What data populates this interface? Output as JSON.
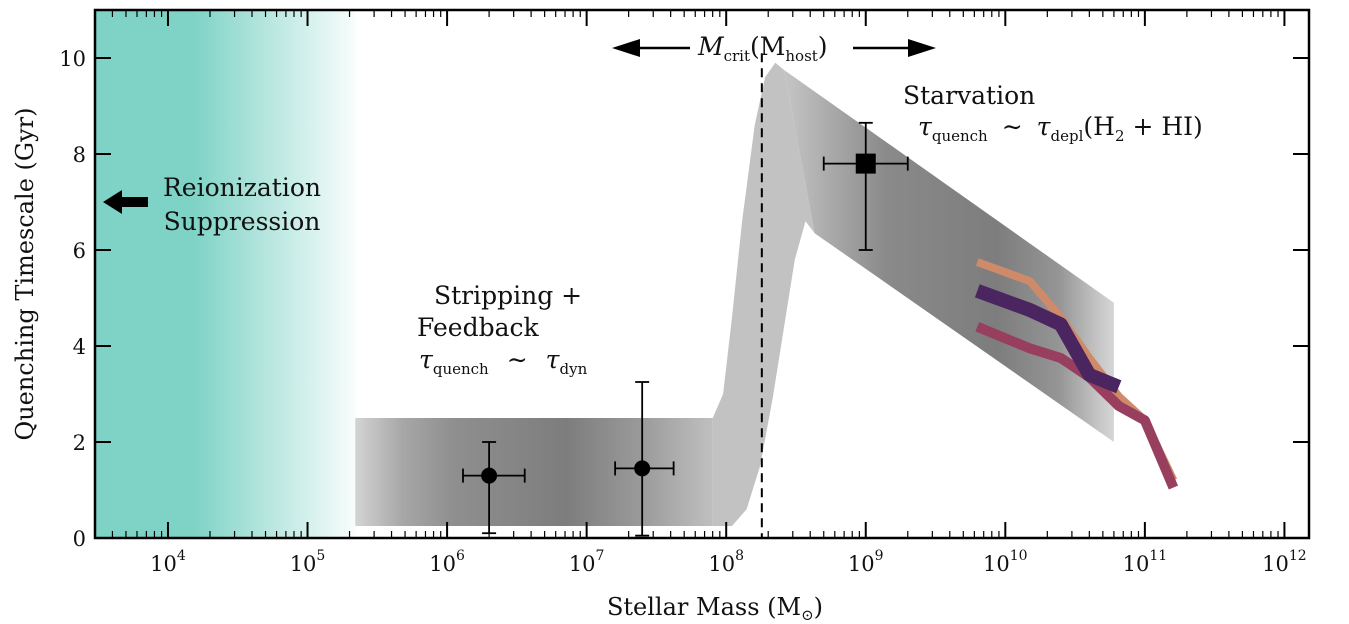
{
  "chart_data": {
    "type": "scatter",
    "title": "",
    "xlabel": "Stellar Mass (M",
    "xlabel_suffix": ")",
    "ylabel": "Quenching Timescale (Gyr)",
    "x_scale": "log",
    "x_range": [
      3000,
      1500000000000
    ],
    "ylim": [
      0,
      11
    ],
    "x_ticks": [
      10000,
      100000,
      1000000,
      10000000,
      100000000,
      1000000000,
      10000000000,
      100000000000,
      1000000000000
    ],
    "x_tick_labels": [
      {
        "base": "10",
        "exp": "4"
      },
      {
        "base": "10",
        "exp": "5"
      },
      {
        "base": "10",
        "exp": "6"
      },
      {
        "base": "10",
        "exp": "7"
      },
      {
        "base": "10",
        "exp": "8"
      },
      {
        "base": "10",
        "exp": "9"
      },
      {
        "base": "10",
        "exp": "10"
      },
      {
        "base": "10",
        "exp": "11"
      },
      {
        "base": "10",
        "exp": "12"
      }
    ],
    "y_ticks": [
      0,
      2,
      4,
      6,
      8,
      10
    ],
    "y_tick_labels": [
      "0",
      "2",
      "4",
      "6",
      "8",
      "10"
    ],
    "grid": false,
    "points": [
      {
        "marker": "circle",
        "x": 2000000,
        "y": 1.3,
        "xerr": [
          1300000,
          3600000
        ],
        "yerr": [
          0.1,
          2.0
        ]
      },
      {
        "marker": "circle",
        "x": 25000000,
        "y": 1.45,
        "xerr": [
          16000000,
          42000000
        ],
        "yerr": [
          0.05,
          3.25
        ]
      },
      {
        "marker": "square",
        "x": 1000000000,
        "y": 7.8,
        "xerr": [
          500000000,
          2000000000
        ],
        "yerr": [
          6.0,
          8.65
        ]
      }
    ],
    "bands": {
      "reionization_x_max": 220000,
      "low_mass_band": {
        "x": [
          220000,
          80000000
        ],
        "y_low": 0.25,
        "y_high": 2.5
      },
      "transition_band_upper": [
        [
          80000000,
          2.5
        ],
        [
          95000000,
          3.0
        ],
        [
          110000000,
          4.6
        ],
        [
          130000000,
          6.6
        ],
        [
          160000000,
          8.6
        ],
        [
          190000000,
          9.6
        ],
        [
          225000000,
          9.9
        ],
        [
          260000000,
          9.75
        ]
      ],
      "transition_band_lower": [
        [
          80000000,
          0.25
        ],
        [
          110000000,
          0.25
        ],
        [
          140000000,
          0.6
        ],
        [
          175000000,
          1.5
        ],
        [
          215000000,
          2.9
        ],
        [
          260000000,
          4.4
        ],
        [
          310000000,
          5.8
        ],
        [
          370000000,
          6.6
        ],
        [
          430000000,
          6.35
        ]
      ],
      "high_mass_band_upper": [
        [
          260000000,
          9.75
        ],
        [
          60000000000,
          4.9
        ]
      ],
      "high_mass_band_lower": [
        [
          430000000,
          6.35
        ],
        [
          60000000000,
          2.0
        ]
      ]
    },
    "critical_mass_x": 180000000,
    "series": [
      {
        "color": "#cf8a6a",
        "width": 8,
        "x": [
          6300000000,
          15000000000,
          25000000000,
          40000000000,
          65000000000,
          100000000000,
          160000000000
        ],
        "y": [
          5.75,
          5.35,
          4.6,
          3.75,
          2.95,
          2.45,
          1.2
        ]
      },
      {
        "color": "#983e5e",
        "width": 10,
        "x": [
          6300000000,
          15000000000,
          25000000000,
          40000000000,
          65000000000,
          100000000000,
          160000000000
        ],
        "y": [
          4.4,
          3.95,
          3.75,
          3.35,
          2.75,
          2.45,
          1.05
        ]
      },
      {
        "color": "#4b2560",
        "width": 14,
        "x": [
          6300000000,
          15000000000,
          25000000000,
          40000000000,
          65000000000
        ],
        "y": [
          5.15,
          4.75,
          4.45,
          3.4,
          3.15
        ]
      }
    ],
    "annotations": {
      "reionization": [
        "Reionization",
        "Suppression"
      ],
      "stripping": [
        "Stripping +",
        "Feedback"
      ],
      "tau_quench": "τ",
      "tau_quench_sub": "quench",
      "sim": "∼",
      "tau_dyn": "τ",
      "tau_dyn_sub": "dyn",
      "starvation": "Starvation",
      "tau_depl": "τ",
      "tau_depl_sub": "depl",
      "depl_open": "(H",
      "depl_h2_sub": "2",
      "depl_rest": " + HI)",
      "m_crit": "M",
      "m_crit_sub": "crit",
      "m_host_open": "(M",
      "m_host_sub": "host",
      "m_host_close": ")",
      "sun_symbol": "⊙"
    },
    "colors": {
      "reionization": "#7fd3c6",
      "band_light": "#c2c2c2",
      "band_dark": "#7f7f7f",
      "axis": "#000000"
    }
  }
}
